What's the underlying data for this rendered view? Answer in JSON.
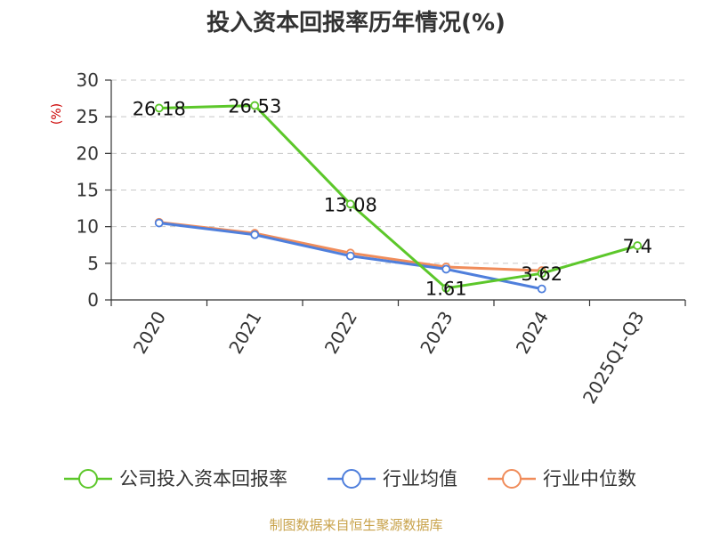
{
  "chart_data": {
    "type": "line",
    "title": "投入资本回报率历年情况(%)",
    "ylabel": "(%)",
    "xlabel": "",
    "categories": [
      "2020",
      "2021",
      "2022",
      "2023",
      "2024",
      "2025Q1-Q3"
    ],
    "ylim": [
      0,
      30
    ],
    "yticks": [
      0,
      5,
      10,
      15,
      20,
      25,
      30
    ],
    "grid": true,
    "legend_position": "bottom",
    "series": [
      {
        "name": "公司投入资本回报率",
        "color": "#5cc72a",
        "values": [
          26.18,
          26.53,
          13.08,
          1.61,
          3.62,
          7.4
        ],
        "labels": [
          "26.18",
          "26.53",
          "13.08",
          "1.61",
          "3.62",
          "7.4"
        ]
      },
      {
        "name": "行业均值",
        "color": "#4f7fdc",
        "values": [
          10.5,
          8.9,
          6.0,
          4.2,
          1.5,
          null
        ]
      },
      {
        "name": "行业中位数",
        "color": "#f08c5a",
        "values": [
          10.6,
          9.1,
          6.4,
          4.5,
          4.0,
          null
        ]
      }
    ]
  },
  "source": "制图数据来自恒生聚源数据库"
}
